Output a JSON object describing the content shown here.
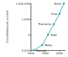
{
  "chart_data": {
    "type": "line",
    "ylabel": "Calculations per second",
    "x": [
      1910,
      1940,
      1960,
      1980,
      2000,
      2015
    ],
    "values": [
      0.001,
      0.01,
      1,
      100,
      10000,
      1000000
    ],
    "point_labels": [
      "Manual",
      "Relay",
      "Tube",
      "Transistor",
      "Chip",
      "Brain"
    ],
    "color": "#3aa8a8",
    "marker": "circle",
    "log": "y",
    "grid": false,
    "xlim": [
      1900,
      2020
    ],
    "xticks": [
      1900,
      1950,
      2000
    ],
    "ylim": [
      0.001,
      1000000
    ],
    "yticks": [
      0.001,
      1,
      {
        "value": 1000,
        "label": "1,000"
      },
      {
        "value": 1000000,
        "label": "1,000,000"
      }
    ]
  }
}
